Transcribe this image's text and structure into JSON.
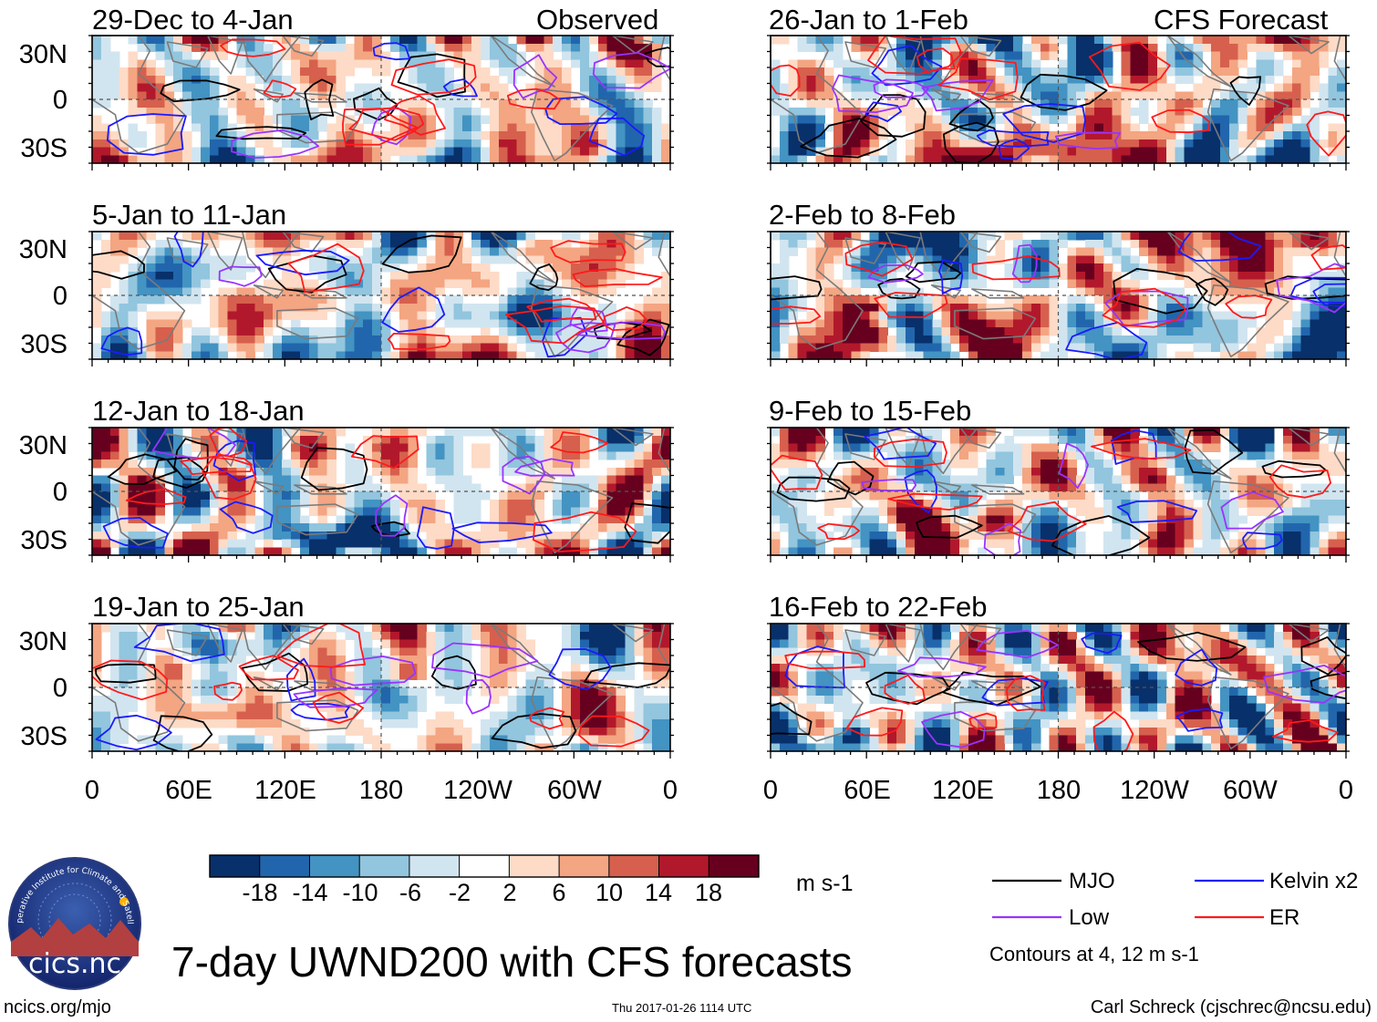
{
  "title": "7-day UWND200 with CFS forecasts",
  "units": "m s-1",
  "contour_note": "Contours at 4, 12 m s-1",
  "footer": {
    "left": "ncics.org/mjo",
    "center": "Thu 2017-01-26 1114 UTC",
    "right": "Carl Schreck (cjschrec@ncsu.edu)"
  },
  "logo": {
    "text": "cics.nc",
    "ring_text": "Cooperative Institute for Climate and Satellites"
  },
  "colors": {
    "scale": [
      "#08306b",
      "#2166ac",
      "#4393c3",
      "#92c5de",
      "#d1e5f0",
      "#ffffff",
      "#fddbc7",
      "#f4a582",
      "#d6604d",
      "#b2182b",
      "#67001f"
    ],
    "mjo": "#000000",
    "kelvin": "#1a1aff",
    "low": "#9933ff",
    "er": "#ff1a1a",
    "coast": "#7a7a7a"
  },
  "chart_data": {
    "type": "heatmap",
    "variable": "200-hPa zonal wind anomaly",
    "source_labels": {
      "observed": "Observed",
      "forecast": "CFS Forecast"
    },
    "x_ticks": [
      "0",
      "60E",
      "120E",
      "180",
      "120W",
      "60W",
      "0"
    ],
    "y_ticks": [
      "30N",
      "0",
      "30S"
    ],
    "colorbar": {
      "boundaries": [
        -18,
        -14,
        -10,
        -6,
        -2,
        2,
        6,
        10,
        14,
        18
      ],
      "labels": [
        "-18",
        "-14",
        "-10",
        "-6",
        "-2",
        "2",
        "6",
        "10",
        "14",
        "18"
      ],
      "units": "m s-1"
    },
    "contour_levels": [
      4,
      12
    ],
    "legend": [
      {
        "key": "mjo",
        "label": "MJO"
      },
      {
        "key": "kelvin",
        "label": "Kelvin x2"
      },
      {
        "key": "low",
        "label": "Low"
      },
      {
        "key": "er",
        "label": "ER"
      }
    ],
    "panels": [
      {
        "id": "p1",
        "label": "29-Dec to 4-Jan",
        "source": "observed",
        "seed": 3
      },
      {
        "id": "p2",
        "label": "5-Jan to 11-Jan",
        "source": "observed",
        "seed": 7
      },
      {
        "id": "p3",
        "label": "12-Jan to 18-Jan",
        "source": "observed",
        "seed": 11
      },
      {
        "id": "p4",
        "label": "19-Jan to 25-Jan",
        "source": "observed",
        "seed": 17
      },
      {
        "id": "p5",
        "label": "26-Jan to 1-Feb",
        "source": "forecast",
        "seed": 23
      },
      {
        "id": "p6",
        "label": "2-Feb to 8-Feb",
        "source": "forecast",
        "seed": 29
      },
      {
        "id": "p7",
        "label": "9-Feb to 15-Feb",
        "source": "forecast",
        "seed": 31
      },
      {
        "id": "p8",
        "label": "16-Feb to 22-Feb",
        "source": "forecast",
        "seed": 37
      }
    ]
  }
}
